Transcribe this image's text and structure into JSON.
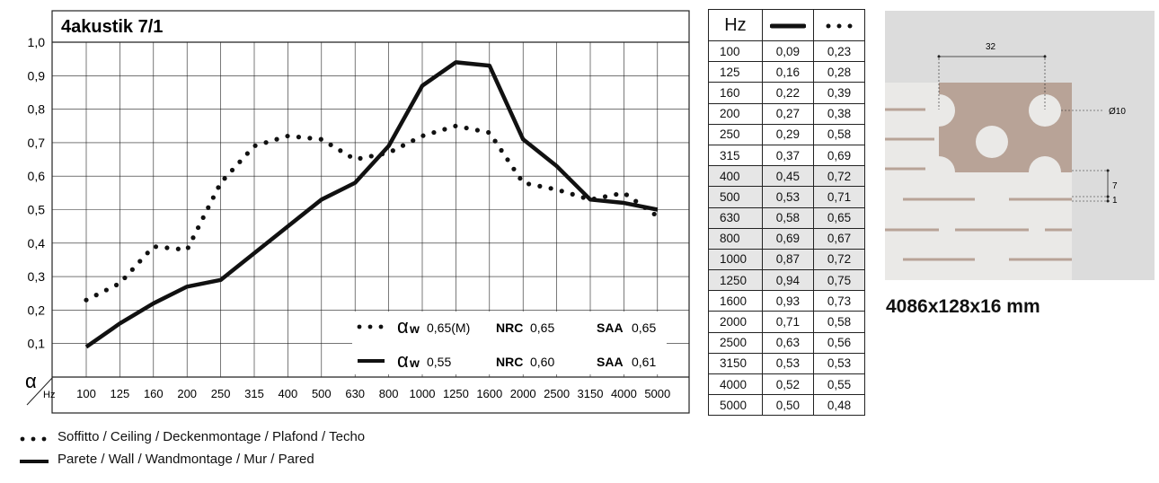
{
  "chart_data": {
    "type": "line",
    "title": "4akustik 7/1",
    "ylabel": "α",
    "xlabel": "Hz",
    "ylim": [
      0,
      1.0
    ],
    "yticks": [
      "0,1",
      "0,2",
      "0,3",
      "0,4",
      "0,5",
      "0,6",
      "0,7",
      "0,8",
      "0,9",
      "1,0"
    ],
    "categories": [
      "100",
      "125",
      "160",
      "200",
      "250",
      "315",
      "400",
      "500",
      "630",
      "800",
      "1000",
      "1250",
      "1600",
      "2000",
      "2500",
      "3150",
      "4000",
      "5000"
    ],
    "grid": true,
    "series": [
      {
        "style": "solid",
        "values": [
          0.09,
          0.16,
          0.22,
          0.27,
          0.29,
          0.37,
          0.45,
          0.53,
          0.58,
          0.69,
          0.87,
          0.94,
          0.93,
          0.71,
          0.63,
          0.53,
          0.52,
          0.5
        ]
      },
      {
        "style": "dotted",
        "values": [
          0.23,
          0.28,
          0.39,
          0.38,
          0.58,
          0.69,
          0.72,
          0.71,
          0.65,
          0.67,
          0.72,
          0.75,
          0.73,
          0.58,
          0.56,
          0.53,
          0.55,
          0.48
        ]
      }
    ],
    "legend": {
      "dotted": {
        "aw_symbol": "α",
        "aw_sub": "w",
        "aw_value": "0,65(M)",
        "nrc_label": "NRC",
        "nrc_value": "0,65",
        "saa_label": "SAA",
        "saa_value": "0,65"
      },
      "solid": {
        "aw_symbol": "α",
        "aw_sub": "w",
        "aw_value": "0,55",
        "nrc_label": "NRC",
        "nrc_value": "0,60",
        "saa_label": "SAA",
        "saa_value": "0,61"
      }
    }
  },
  "table": {
    "header_hz": "Hz",
    "rows": [
      [
        "100",
        "0,09",
        "0,23"
      ],
      [
        "125",
        "0,16",
        "0,28"
      ],
      [
        "160",
        "0,22",
        "0,39"
      ],
      [
        "200",
        "0,27",
        "0,38"
      ],
      [
        "250",
        "0,29",
        "0,58"
      ],
      [
        "315",
        "0,37",
        "0,69"
      ],
      [
        "400",
        "0,45",
        "0,72"
      ],
      [
        "500",
        "0,53",
        "0,71"
      ],
      [
        "630",
        "0,58",
        "0,65"
      ],
      [
        "800",
        "0,69",
        "0,67"
      ],
      [
        "1000",
        "0,87",
        "0,72"
      ],
      [
        "1250",
        "0,94",
        "0,75"
      ],
      [
        "1600",
        "0,93",
        "0,73"
      ],
      [
        "2000",
        "0,71",
        "0,58"
      ],
      [
        "2500",
        "0,63",
        "0,56"
      ],
      [
        "3150",
        "0,53",
        "0,53"
      ],
      [
        "4000",
        "0,52",
        "0,55"
      ],
      [
        "5000",
        "0,50",
        "0,48"
      ]
    ],
    "shaded_rows": [
      6,
      7,
      8,
      9,
      10,
      11
    ]
  },
  "legend_bottom": {
    "dotted": "Soffitto / Ceiling / Deckenmontage / Plafond / Techo",
    "solid": "Parete / Wall / Wandmontage / Mur / Pared"
  },
  "profile": {
    "pitch": "32",
    "hole": "Ø10",
    "depth": "7",
    "gap": "1",
    "dimensions": "4086x128x16 mm",
    "colors": {
      "background": "#dcdcdc",
      "panel": "#b8a397",
      "slat": "#eae9e7",
      "groove": "#b8a397"
    }
  }
}
